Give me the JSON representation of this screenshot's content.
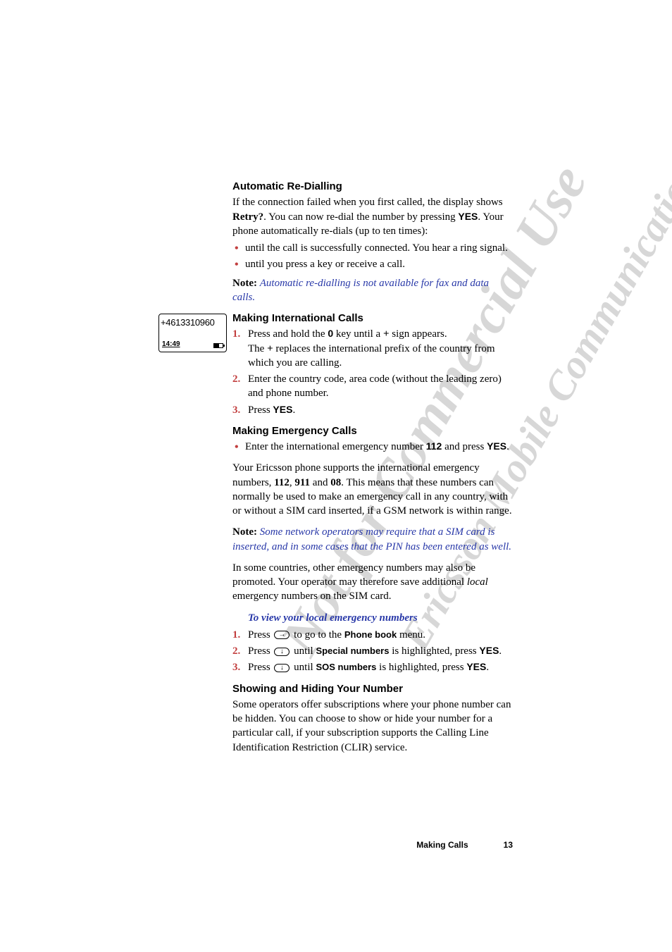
{
  "watermarks": {
    "w1": "Not for Commercial Use",
    "w2": "Ericsson Mobile Communications AB"
  },
  "phone": {
    "number": "+4613310960",
    "time": "14:49"
  },
  "sections": {
    "autoRedial": {
      "title": "Automatic Re-Dialling",
      "intro1a": "If the connection failed when you first called, the display shows ",
      "intro1b": "Retry?",
      "intro1c": ". You can now re-dial the number by pressing ",
      "intro1d": "YES",
      "intro1e": ". Your phone automatically re-dials (up to ten times):",
      "b1": "until the call is successfully connected. You hear a ring signal.",
      "b2": "until you press a key or receive a call.",
      "noteLabel": "Note:",
      "noteText": "Automatic re-dialling is not available for fax and data calls."
    },
    "intl": {
      "title": "Making International Calls",
      "n1a": "Press and hold the ",
      "n1b": "0",
      "n1c": " key until a ",
      "n1d": "+",
      "n1e": " sign appears.",
      "n1f": "The ",
      "n1g": "+",
      "n1h": " replaces the international prefix of the country from which you are calling.",
      "n2": "Enter the country code, area code (without the leading zero) and phone number.",
      "n3a": "Press ",
      "n3b": "YES",
      "n3c": "."
    },
    "emerg": {
      "title": "Making Emergency Calls",
      "b1a": "Enter the international emergency number ",
      "b1b": "112",
      "b1c": " and press ",
      "b1d": "YES",
      "b1e": ".",
      "p1a": "Your Ericsson phone supports the international emergency numbers, ",
      "p1b": "112",
      "p1c": ", ",
      "p1d": "911",
      "p1e": " and ",
      "p1f": "08",
      "p1g": ". This means that these numbers can normally be used to make an emergency call in any country, with or without a SIM card inserted, if a GSM network is within range.",
      "noteLabel": "Note:",
      "noteText": "Some network operators may require that a SIM card is inserted, and in some cases that the PIN has been entered as well.",
      "p2a": "In some countries, other emergency numbers may also be promoted. Your operator may therefore save additional ",
      "p2b": "local",
      "p2c": " emergency numbers on the SIM card.",
      "subhead": "To view your local emergency numbers",
      "s1a": "Press ",
      "s1b": " to go to the ",
      "s1c": "Phone book",
      "s1d": " menu.",
      "s2a": "Press ",
      "s2b": " until ",
      "s2c": "Special numbers",
      "s2d": " is highlighted, press ",
      "s2e": "YES",
      "s2f": ".",
      "s3a": "Press ",
      "s3b": " until ",
      "s3c": "SOS numbers",
      "s3d": " is highlighted, press ",
      "s3e": "YES",
      "s3f": "."
    },
    "showHide": {
      "title": "Showing and Hiding Your Number",
      "p": "Some operators offer subscriptions where your phone number can be hidden. You can choose to show or hide your number for a particular call, if your subscription supports the Calling Line Identification Restriction (CLIR) service."
    }
  },
  "footer": {
    "title": "Making Calls",
    "page": "13"
  }
}
